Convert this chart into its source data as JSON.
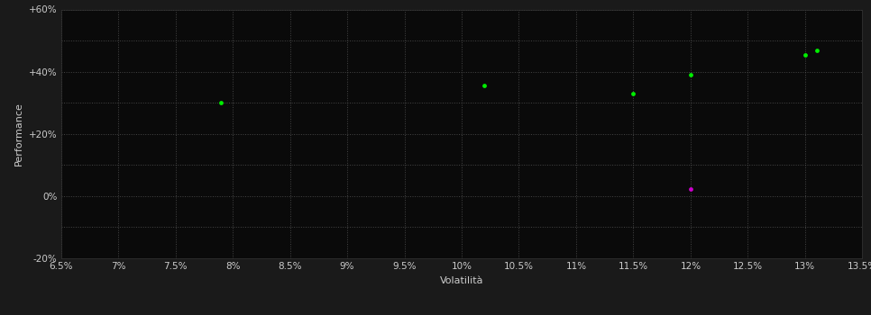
{
  "background_color": "#1a1a1a",
  "plot_bg_color": "#0a0a0a",
  "grid_color": "#555555",
  "text_color": "#cccccc",
  "xlabel": "Volatilità",
  "ylabel": "Performance",
  "xlim": [
    0.065,
    0.135
  ],
  "ylim": [
    -0.2,
    0.6
  ],
  "xticks": [
    0.065,
    0.07,
    0.075,
    0.08,
    0.085,
    0.09,
    0.095,
    0.1,
    0.105,
    0.11,
    0.115,
    0.12,
    0.125,
    0.13,
    0.135
  ],
  "xtick_labels": [
    "6.5%",
    "7%",
    "7.5%",
    "8%",
    "8.5%",
    "9%",
    "9.5%",
    "10%",
    "10.5%",
    "11%",
    "11.5%",
    "12%",
    "12.5%",
    "13%",
    "13.5%"
  ],
  "yticks": [
    -0.2,
    -0.1,
    0.0,
    0.1,
    0.2,
    0.3,
    0.4,
    0.5,
    0.6
  ],
  "ytick_labels": [
    "-20%",
    "",
    "0%",
    "",
    "+20%",
    "",
    "+40%",
    "",
    "+60%"
  ],
  "green_points": [
    [
      0.079,
      0.3
    ],
    [
      0.102,
      0.355
    ],
    [
      0.115,
      0.33
    ],
    [
      0.12,
      0.39
    ],
    [
      0.13,
      0.455
    ],
    [
      0.131,
      0.468
    ]
  ],
  "magenta_points": [
    [
      0.12,
      0.022
    ]
  ],
  "point_size": 12,
  "green_color": "#00ee00",
  "magenta_color": "#cc00cc",
  "grid_linestyle": ":",
  "grid_linewidth": 0.7,
  "grid_alpha": 0.8,
  "xlabel_fontsize": 8,
  "ylabel_fontsize": 8,
  "tick_fontsize": 7.5
}
